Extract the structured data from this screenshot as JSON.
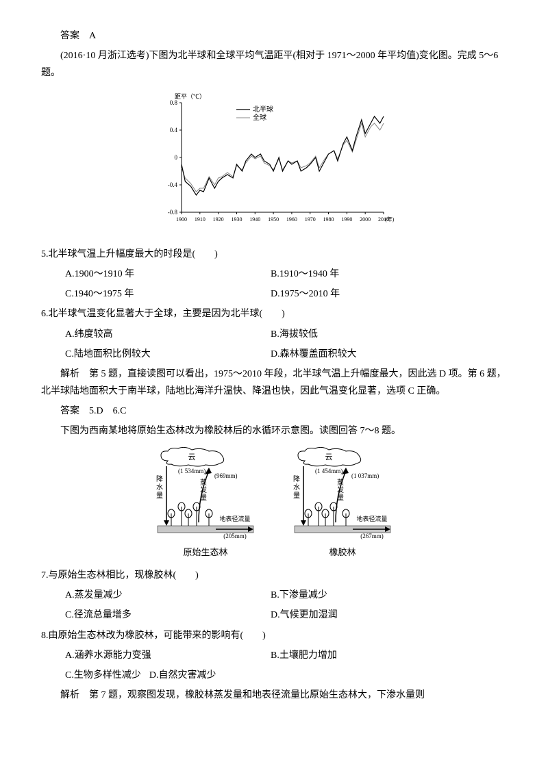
{
  "answer1": {
    "label": "答案",
    "value": "A"
  },
  "intro1": "(2016·10 月浙江选考)下图为北半球和全球平均气温距平(相对于 1971～2000 年平均值)变化图。完成 5～6 题。",
  "chart": {
    "type": "line",
    "ylabel": "距平（℃）",
    "xlabel": "(年)",
    "ylim": [
      -0.8,
      0.8
    ],
    "ytick_step": 0.4,
    "yticks": [
      "0.8",
      "0.4",
      "0",
      "-0.4",
      "-0.8"
    ],
    "xlim": [
      1900,
      2010
    ],
    "xtick_step": 10,
    "xticks": [
      "1900",
      "1910",
      "1920",
      "1930",
      "1940",
      "1950",
      "1960",
      "1970",
      "1980",
      "1990",
      "2000",
      "2010"
    ],
    "legend": [
      "北半球",
      "全球"
    ],
    "line_colors": {
      "nh": "#000000",
      "global": "#888888"
    },
    "background_color": "#ffffff",
    "axis_color": "#000000",
    "series_nh": [
      [
        1900,
        -0.1
      ],
      [
        1902,
        -0.35
      ],
      [
        1905,
        -0.42
      ],
      [
        1908,
        -0.55
      ],
      [
        1910,
        -0.48
      ],
      [
        1912,
        -0.5
      ],
      [
        1915,
        -0.3
      ],
      [
        1918,
        -0.45
      ],
      [
        1920,
        -0.35
      ],
      [
        1922,
        -0.3
      ],
      [
        1925,
        -0.25
      ],
      [
        1928,
        -0.3
      ],
      [
        1930,
        -0.1
      ],
      [
        1933,
        -0.2
      ],
      [
        1935,
        -0.05
      ],
      [
        1938,
        0.05
      ],
      [
        1940,
        0.0
      ],
      [
        1943,
        0.05
      ],
      [
        1945,
        -0.05
      ],
      [
        1948,
        -0.1
      ],
      [
        1950,
        -0.2
      ],
      [
        1953,
        0.0
      ],
      [
        1955,
        -0.2
      ],
      [
        1958,
        -0.05
      ],
      [
        1960,
        -0.1
      ],
      [
        1963,
        -0.05
      ],
      [
        1965,
        -0.2
      ],
      [
        1968,
        -0.15
      ],
      [
        1970,
        -0.1
      ],
      [
        1973,
        0.0
      ],
      [
        1975,
        -0.2
      ],
      [
        1978,
        -0.05
      ],
      [
        1980,
        0.05
      ],
      [
        1983,
        0.1
      ],
      [
        1985,
        -0.05
      ],
      [
        1988,
        0.2
      ],
      [
        1990,
        0.3
      ],
      [
        1993,
        0.1
      ],
      [
        1995,
        0.3
      ],
      [
        1998,
        0.55
      ],
      [
        2000,
        0.35
      ],
      [
        2003,
        0.5
      ],
      [
        2005,
        0.6
      ],
      [
        2008,
        0.5
      ],
      [
        2010,
        0.6
      ]
    ],
    "series_global": [
      [
        1900,
        -0.15
      ],
      [
        1902,
        -0.3
      ],
      [
        1905,
        -0.38
      ],
      [
        1908,
        -0.5
      ],
      [
        1910,
        -0.45
      ],
      [
        1912,
        -0.45
      ],
      [
        1915,
        -0.28
      ],
      [
        1918,
        -0.4
      ],
      [
        1920,
        -0.3
      ],
      [
        1922,
        -0.28
      ],
      [
        1925,
        -0.22
      ],
      [
        1928,
        -0.28
      ],
      [
        1930,
        -0.12
      ],
      [
        1933,
        -0.18
      ],
      [
        1935,
        -0.08
      ],
      [
        1938,
        0.02
      ],
      [
        1940,
        -0.02
      ],
      [
        1943,
        0.02
      ],
      [
        1945,
        -0.08
      ],
      [
        1948,
        -0.12
      ],
      [
        1950,
        -0.18
      ],
      [
        1953,
        -0.02
      ],
      [
        1955,
        -0.18
      ],
      [
        1958,
        -0.05
      ],
      [
        1960,
        -0.08
      ],
      [
        1963,
        -0.05
      ],
      [
        1965,
        -0.15
      ],
      [
        1968,
        -0.12
      ],
      [
        1970,
        -0.08
      ],
      [
        1973,
        0.02
      ],
      [
        1975,
        -0.15
      ],
      [
        1978,
        -0.02
      ],
      [
        1980,
        0.05
      ],
      [
        1983,
        0.1
      ],
      [
        1985,
        -0.02
      ],
      [
        1988,
        0.18
      ],
      [
        1990,
        0.25
      ],
      [
        1993,
        0.08
      ],
      [
        1995,
        0.25
      ],
      [
        1998,
        0.5
      ],
      [
        2000,
        0.3
      ],
      [
        2003,
        0.45
      ],
      [
        2005,
        0.5
      ],
      [
        2008,
        0.4
      ],
      [
        2010,
        0.5
      ]
    ]
  },
  "q5": {
    "text": "5.北半球气温上升幅度最大的时段是(　　)",
    "a": "A.1900～1910 年",
    "b": "B.1910～1940 年",
    "c": "C.1940～1975 年",
    "d": "D.1975～2010 年"
  },
  "q6": {
    "text": "6.北半球气温变化显著大于全球，主要是因为北半球(　　)",
    "a": "A.纬度较高",
    "b": "B.海拔较低",
    "c": "C.陆地面积比例较大",
    "d": "D.森林覆盖面积较大"
  },
  "explain56": {
    "label": "解析",
    "text": "第 5 题，直接读图可以看出，1975～2010 年段，北半球气温上升幅度最大，因此选 D 项。第 6 题，北半球陆地面积大于南半球，陆地比海洋升温快、降温也快，因此气温变化显著，选项 C 正确。"
  },
  "answer56": {
    "label": "答案",
    "value": "5.D　6.C"
  },
  "intro2": "下图为西南某地将原始生态林改为橡胶林后的水循环示意图。读图回答 7～8 题。",
  "diagrams": {
    "left": {
      "title": "原始生态林",
      "cloud_label": "云",
      "precip_label": "降水量",
      "precip_value": "(1 534mm)",
      "evap_label": "蒸发量",
      "evap_value": "(969mm)",
      "runoff_label": "地表径流量",
      "runoff_value": "(205mm)"
    },
    "right": {
      "title": "橡胶林",
      "cloud_label": "云",
      "precip_label": "降水量",
      "precip_value": "(1 454mm)",
      "evap_label": "蒸发量",
      "evap_value": "(1 037mm)",
      "runoff_label": "地表径流量",
      "runoff_value": "(267mm)"
    },
    "colors": {
      "cloud_stroke": "#000000",
      "arrow": "#000000",
      "tree": "#000000",
      "ground_fill": "#c8c8c8"
    }
  },
  "q7": {
    "text": "7.与原始生态林相比，现橡胶林(　　)",
    "a": "A.蒸发量减少",
    "b": "B.下渗量减少",
    "c": "C.径流总量增多",
    "d": "D.气候更加湿润"
  },
  "q8": {
    "text": "8.由原始生态林改为橡胶林，可能带来的影响有(　　)",
    "a": "A.涵养水源能力变强",
    "b": "B.土壤肥力增加",
    "c": "C.生物多样性减少",
    "d": "D.自然灾害减少"
  },
  "explain78": {
    "label": "解析",
    "text": "第 7 题，观察图发现，橡胶林蒸发量和地表径流量比原始生态林大，下渗水量则"
  }
}
